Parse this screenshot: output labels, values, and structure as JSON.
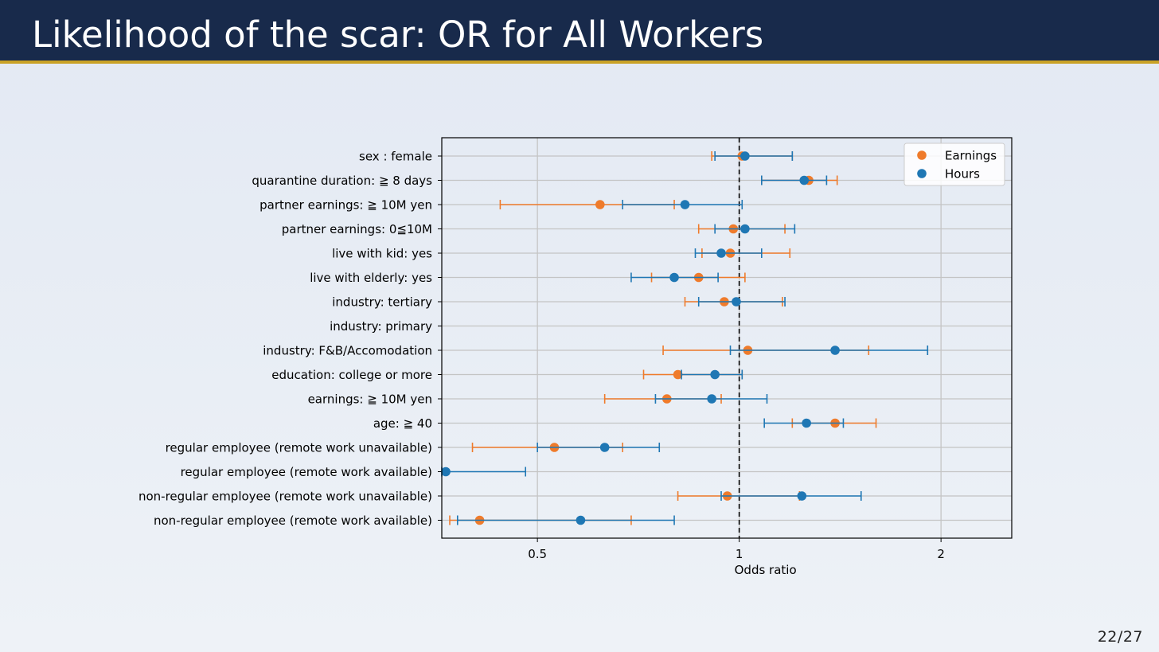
{
  "slide": {
    "title": "Likelihood of the scar: OR for All Workers",
    "page_number": "22",
    "page_total": "27",
    "page_separator": "/"
  },
  "colors": {
    "header_bg": "#182a4b",
    "header_rule": "#c9a227",
    "earnings": "#ef7b2b",
    "hours": "#1f77b4",
    "grid": "#c4c4c4",
    "reference_line": "#000000"
  },
  "chart_data": {
    "type": "scatter",
    "subtype": "forest-plot",
    "xlabel": "Odds ratio",
    "x_scale": "log",
    "xlim": [
      0.36,
      2.55
    ],
    "x_ticks": [
      {
        "value": 0.5,
        "label": "0.5"
      },
      {
        "value": 1,
        "label": "1"
      },
      {
        "value": 2,
        "label": "2"
      }
    ],
    "reference_line": {
      "x": 1,
      "style": "dashed"
    },
    "grid": true,
    "legend_position": "top-right",
    "categories": [
      "sex : female",
      "quarantine duration:  ≧ 8 days",
      "partner earnings:  ≧ 10M yen",
      "partner earnings:  0≦10M",
      "live with kid:  yes",
      "live with elderly:  yes",
      "industry:  tertiary",
      "industry:  primary",
      "industry:  F&B/Accomodation",
      "education:  college or more",
      "earnings:  ≧ 10M yen",
      "age:  ≧ 40",
      "regular employee (remote work unavailable)",
      "regular employee (remote work available)",
      "non-regular employee (remote work unavailable)",
      "non-regular employee (remote work available)"
    ],
    "series": [
      {
        "name": "Earnings",
        "color": "#ef7b2b",
        "estimates": [
          1.01,
          1.27,
          0.62,
          0.98,
          0.97,
          0.87,
          0.95,
          null,
          1.03,
          0.81,
          0.78,
          1.39,
          0.53,
          null,
          0.96,
          0.41
        ],
        "ci_low": [
          0.91,
          1.08,
          0.44,
          0.87,
          0.88,
          0.74,
          0.83,
          null,
          0.77,
          0.72,
          0.63,
          1.2,
          0.4,
          null,
          0.81,
          0.37
        ],
        "ci_high": [
          1.2,
          1.4,
          0.8,
          1.17,
          1.19,
          1.02,
          1.16,
          null,
          1.56,
          1.01,
          0.94,
          1.6,
          0.67,
          null,
          1.23,
          0.69
        ]
      },
      {
        "name": "Hours",
        "color": "#1f77b4",
        "estimates": [
          1.02,
          1.25,
          0.83,
          1.02,
          0.94,
          0.8,
          0.99,
          null,
          1.39,
          0.92,
          0.91,
          1.26,
          0.63,
          0.365,
          1.24,
          0.58
        ],
        "ci_low": [
          0.92,
          1.08,
          0.67,
          0.92,
          0.86,
          0.69,
          0.87,
          null,
          0.97,
          0.82,
          0.75,
          1.09,
          0.5,
          0.36,
          0.94,
          0.38
        ],
        "ci_high": [
          1.2,
          1.35,
          1.01,
          1.21,
          1.08,
          0.93,
          1.17,
          null,
          1.91,
          1.01,
          1.1,
          1.43,
          0.76,
          0.48,
          1.52,
          0.8
        ]
      }
    ]
  }
}
